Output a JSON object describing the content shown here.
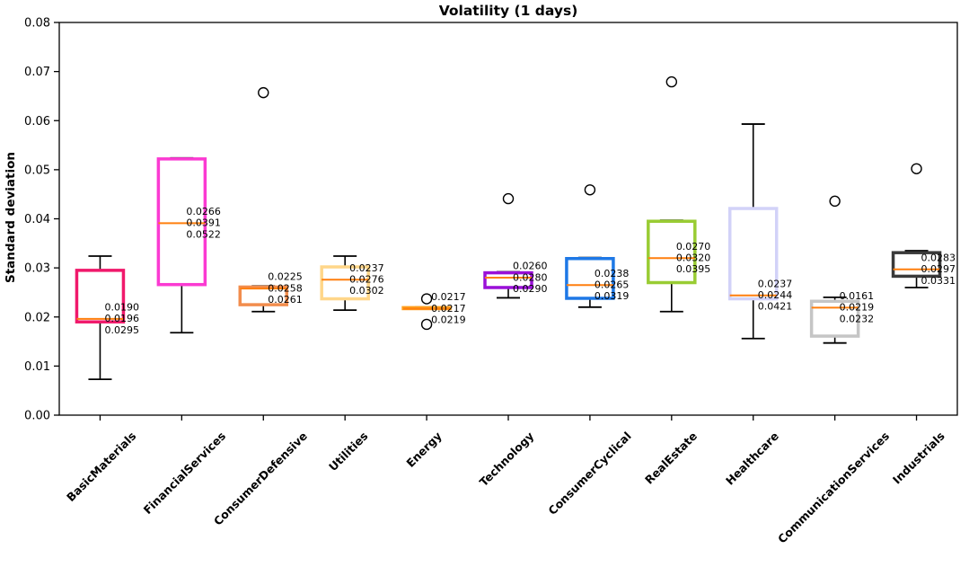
{
  "chart_data": {
    "type": "box",
    "title": "Volatility (1 days)",
    "ylabel": "Standard deviation",
    "ylim": [
      0.0,
      0.08
    ],
    "ytick_labels": [
      "0.00",
      "0.01",
      "0.02",
      "0.03",
      "0.04",
      "0.05",
      "0.06",
      "0.07",
      "0.08"
    ],
    "grid": false,
    "legend": "none",
    "colors": {
      "median_line": "#FF7F0E",
      "whisker": "#000000",
      "spine": "#000000",
      "annotation_text": "#000000"
    },
    "series": [
      {
        "label": "BasicMaterials",
        "color": "#F0196B",
        "q1": 0.019,
        "median": 0.0196,
        "q3": 0.0295,
        "whisker_low": 0.0073,
        "whisker_high": 0.0324,
        "outliers": [],
        "annotations": [
          "0.0190",
          "0.0196",
          "0.0295"
        ]
      },
      {
        "label": "FinancialServices",
        "color": "#FB3AD2",
        "q1": 0.0266,
        "median": 0.0391,
        "q3": 0.0522,
        "whisker_low": 0.0168,
        "whisker_high": 0.0524,
        "outliers": [],
        "annotations": [
          "0.0266",
          "0.0391",
          "0.0522"
        ]
      },
      {
        "label": "ConsumerDefensive",
        "color": "#F28D4D",
        "q1": 0.0225,
        "median": 0.0258,
        "q3": 0.0261,
        "whisker_low": 0.0211,
        "whisker_high": 0.0263,
        "outliers": [
          0.0657
        ],
        "annotations": [
          "0.0225",
          "0.0258",
          "0.0261"
        ]
      },
      {
        "label": "Utilities",
        "color": "#FFD689",
        "q1": 0.0237,
        "median": 0.0276,
        "q3": 0.0302,
        "whisker_low": 0.0214,
        "whisker_high": 0.0324,
        "outliers": [],
        "annotations": [
          "0.0237",
          "0.0276",
          "0.0302"
        ]
      },
      {
        "label": "Energy",
        "color": "#FFA01E",
        "q1": 0.0217,
        "median": 0.0217,
        "q3": 0.0219,
        "whisker_low": 0.0216,
        "whisker_high": 0.022,
        "outliers": [
          0.0237,
          0.0185
        ],
        "annotations": [
          "0.0217",
          "0.0217",
          "0.0219"
        ]
      },
      {
        "label": "Technology",
        "color": "#9A10D8",
        "q1": 0.026,
        "median": 0.028,
        "q3": 0.029,
        "whisker_low": 0.0239,
        "whisker_high": 0.0292,
        "outliers": [
          0.0441
        ],
        "annotations": [
          "0.0260",
          "0.0280",
          "0.0290"
        ]
      },
      {
        "label": "ConsumerCyclical",
        "color": "#1E78E6",
        "q1": 0.0238,
        "median": 0.0265,
        "q3": 0.0319,
        "whisker_low": 0.022,
        "whisker_high": 0.0321,
        "outliers": [
          0.0459
        ],
        "annotations": [
          "0.0238",
          "0.0265",
          "0.0319"
        ]
      },
      {
        "label": "RealEstate",
        "color": "#99CC33",
        "q1": 0.027,
        "median": 0.032,
        "q3": 0.0395,
        "whisker_low": 0.0211,
        "whisker_high": 0.0397,
        "outliers": [
          0.0679
        ],
        "annotations": [
          "0.0270",
          "0.0320",
          "0.0395"
        ]
      },
      {
        "label": "Healthcare",
        "color": "#D2D2F8",
        "q1": 0.0237,
        "median": 0.0244,
        "q3": 0.0421,
        "whisker_low": 0.0156,
        "whisker_high": 0.0593,
        "outliers": [],
        "annotations": [
          "0.0237",
          "0.0244",
          "0.0421"
        ]
      },
      {
        "label": "CommunicationServices",
        "color": "#C5C5C5",
        "q1": 0.0161,
        "median": 0.0219,
        "q3": 0.0232,
        "whisker_low": 0.0147,
        "whisker_high": 0.024,
        "outliers": [
          0.0436
        ],
        "annotations": [
          "0.0161",
          "0.0219",
          "0.0232"
        ]
      },
      {
        "label": "Industrials",
        "color": "#3A3A3A",
        "q1": 0.0283,
        "median": 0.0297,
        "q3": 0.0331,
        "whisker_low": 0.026,
        "whisker_high": 0.0335,
        "outliers": [
          0.0502
        ],
        "annotations": [
          "0.0283",
          "0.0297",
          "0.0331"
        ]
      }
    ]
  }
}
